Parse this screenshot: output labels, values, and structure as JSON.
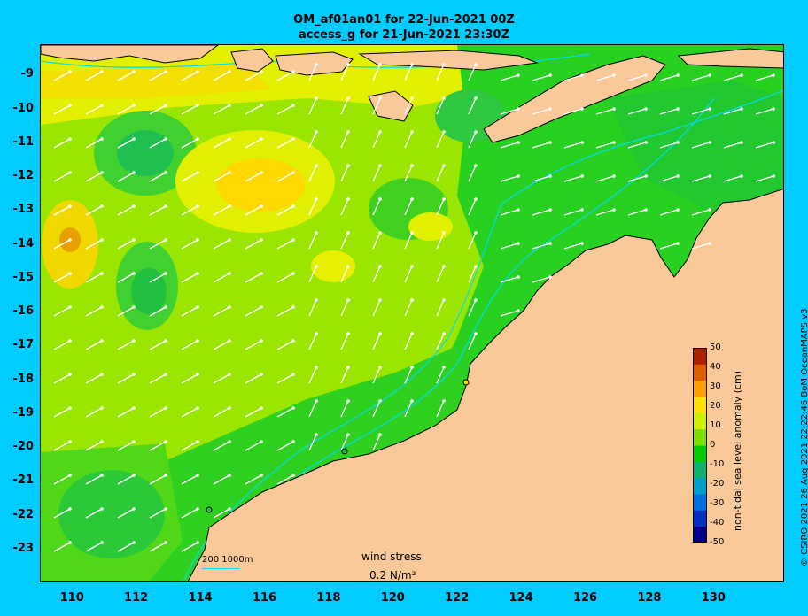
{
  "title": {
    "line1": "OM_af01an01 for 22-Jun-2021 00Z",
    "line2": "access_g for 21-Jun-2021 23:30Z"
  },
  "credit": "© CSIRO 2021  26 Aug 2021 22:22:46 BoM OceanMAPS v3",
  "axes": {
    "longitude_ticks": [
      "110",
      "112",
      "114",
      "116",
      "118",
      "120",
      "122",
      "124",
      "126",
      "128",
      "130"
    ],
    "latitude_ticks": [
      "-9",
      "-10",
      "-11",
      "-12",
      "-13",
      "-14",
      "-15",
      "-16",
      "-17",
      "-18",
      "-19",
      "-20",
      "-21",
      "-22",
      "-23"
    ],
    "lon_range": [
      109,
      132.2
    ],
    "lat_range": [
      -24,
      -8.1
    ]
  },
  "colorbar": {
    "label": "non-tidal sea level anomaly (cm)",
    "ticks": [
      "50",
      "40",
      "30",
      "20",
      "10",
      "0",
      "-10",
      "-20",
      "-30",
      "-40",
      "-50"
    ],
    "colors": [
      "#00008b",
      "#0030c0",
      "#0070e0",
      "#00a0c8",
      "#10b070",
      "#00cc00",
      "#7be000",
      "#ccf000",
      "#ffe000",
      "#ffa000",
      "#e06000",
      "#b02000"
    ]
  },
  "legend": {
    "wind_stress_title": "wind stress",
    "wind_stress_value": "0.2 N/m²",
    "depth_contours": "200  1000m"
  },
  "colors": {
    "background": "#00ccff",
    "land": "#f9c99a",
    "coast": "#000000",
    "bathymetry_contour": "#00ddee",
    "arrows": "#ffffff"
  }
}
